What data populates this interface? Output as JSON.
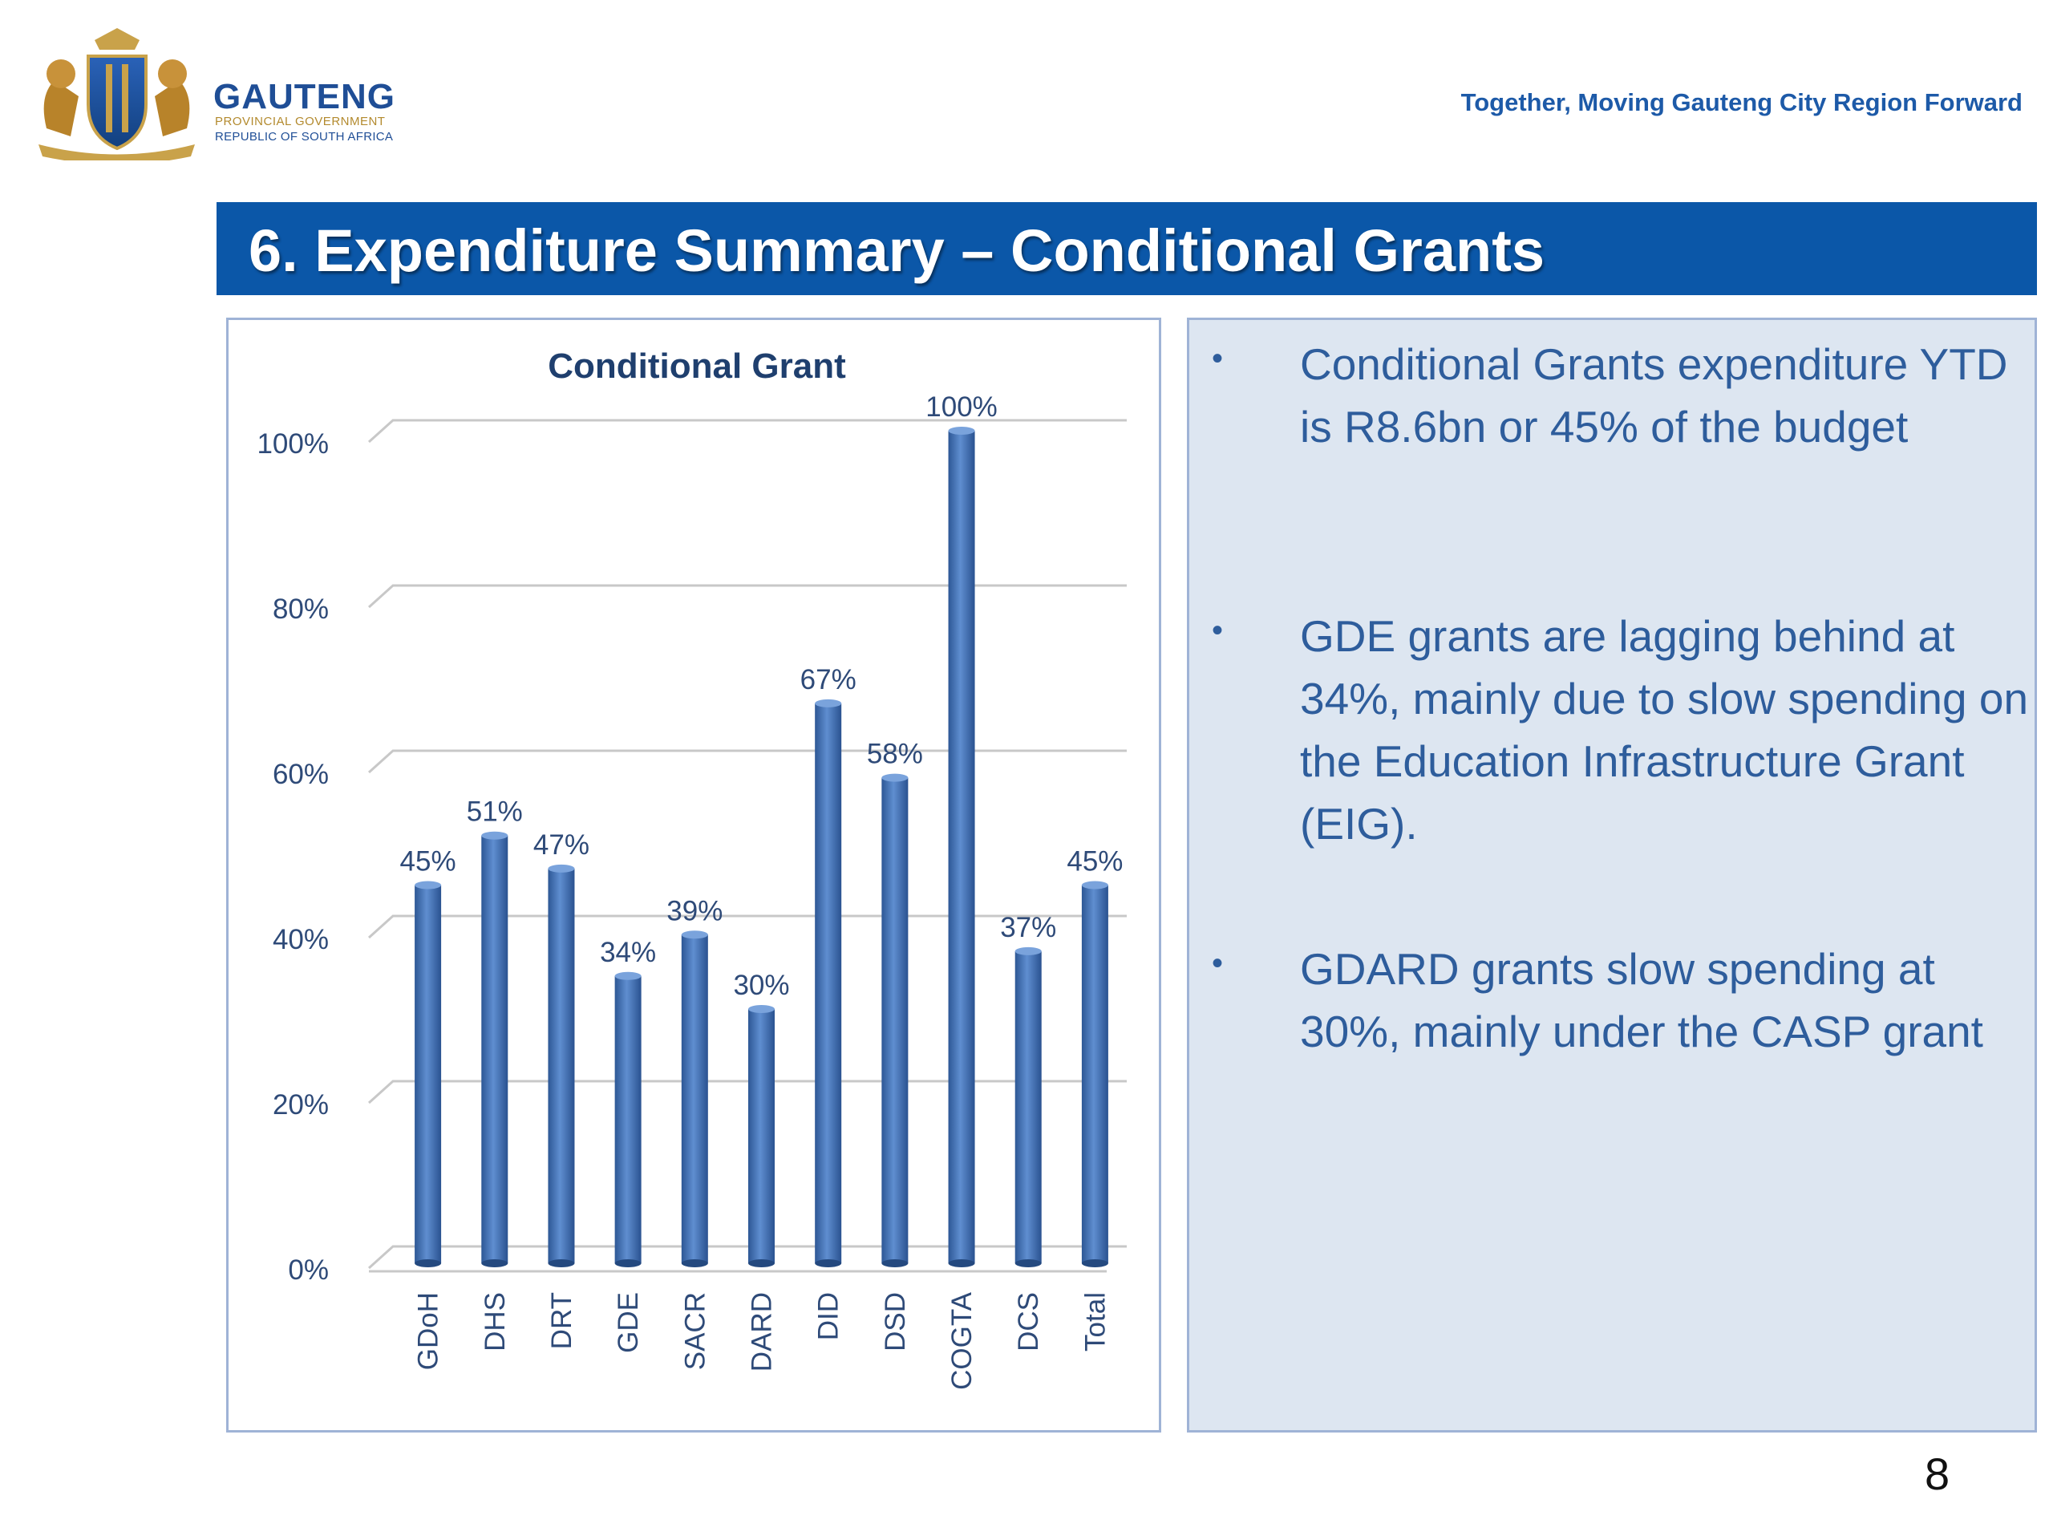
{
  "header": {
    "logo_name": "GAUTENG",
    "logo_sub1": "PROVINCIAL GOVERNMENT",
    "logo_sub2": "REPUBLIC OF SOUTH AFRICA",
    "tagline": "Together, Moving Gauteng City Region Forward"
  },
  "slide": {
    "title": "6. Expenditure Summary – Conditional Grants",
    "page_number": "8"
  },
  "bullets": [
    "Conditional Grants expenditure YTD is R8.6bn or 45% of the budget",
    "GDE grants are lagging behind at 34%, mainly due to slow spending on the Education Infrastructure Grant (EIG).",
    "GDARD grants slow spending at 30%, mainly under the CASP grant"
  ],
  "colors": {
    "title_bar": "#0b57a8",
    "bar": "#3f6fb6",
    "text": "#2e5d9c",
    "panel": "#dde6f1"
  },
  "chart_data": {
    "type": "bar",
    "title": "Conditional Grant",
    "categories": [
      "GDoH",
      "DHS",
      "DRT",
      "GDE",
      "SACR",
      "DARD",
      "DID",
      "DSD",
      "COGTA",
      "DCS",
      "Total"
    ],
    "values": [
      45,
      51,
      47,
      34,
      39,
      30,
      67,
      58,
      100,
      37,
      45
    ],
    "data_labels": [
      "45%",
      "51%",
      "47%",
      "34%",
      "39%",
      "30%",
      "67%",
      "58%",
      "100%",
      "37%",
      "45%"
    ],
    "y_ticks": [
      "0%",
      "20%",
      "40%",
      "60%",
      "80%",
      "100%"
    ],
    "ylim": [
      0,
      100
    ],
    "grid": true,
    "legend": "none"
  }
}
